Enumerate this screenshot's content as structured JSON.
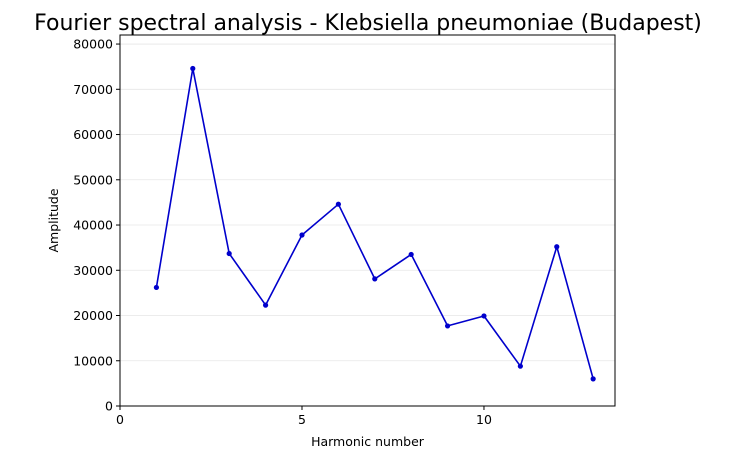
{
  "chart_data": {
    "type": "line",
    "title": "Fourier spectral analysis - Klebsiella pneumoniae (Budapest)",
    "xlabel": "Harmonic number",
    "ylabel": "Amplitude",
    "x": [
      1,
      2,
      3,
      4,
      5,
      6,
      7,
      8,
      9,
      10,
      11,
      12,
      13
    ],
    "series": [
      {
        "values": [
          26200,
          74600,
          33700,
          22300,
          37800,
          44600,
          28100,
          33500,
          17700,
          19900,
          8800,
          35200,
          6000
        ],
        "color": "#0000cc",
        "marker": "circle"
      }
    ],
    "xlim": [
      0,
      13.6
    ],
    "ylim": [
      0,
      82000
    ],
    "xticks": [
      0,
      5,
      10
    ],
    "yticks": [
      0,
      10000,
      20000,
      30000,
      40000,
      50000,
      60000,
      70000,
      80000
    ],
    "grid": "horizontal",
    "grid_color": "#e6e6e6",
    "legend": "none"
  }
}
